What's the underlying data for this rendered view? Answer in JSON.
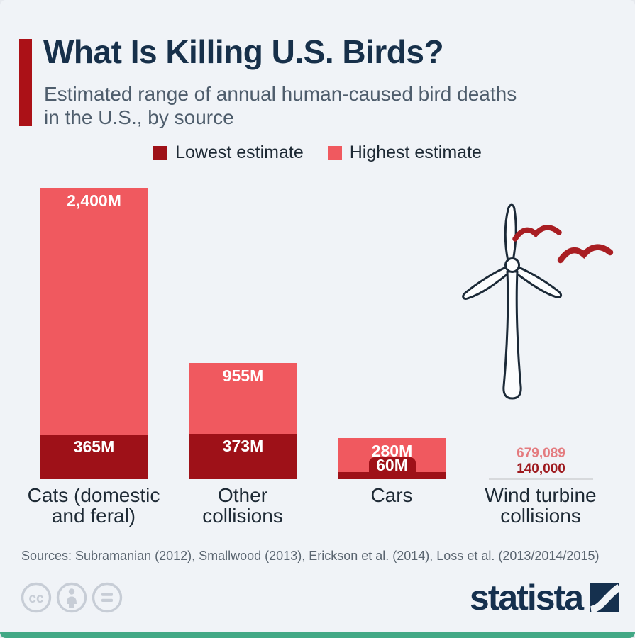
{
  "header": {
    "title": "What Is Killing U.S. Birds?",
    "subtitle_lines": [
      "Estimated range of annual human-caused bird deaths",
      "in the U.S., by source"
    ]
  },
  "legend": {
    "items": [
      {
        "label": "Lowest estimate",
        "color": "#9e1118"
      },
      {
        "label": "Highest estimate",
        "color": "#f0595f"
      }
    ]
  },
  "chart_data": {
    "type": "bar",
    "title": "What Is Killing U.S. Birds?",
    "subtitle": "Estimated range of annual human-caused bird deaths in the U.S., by source",
    "unit": "millions of bird deaths per year",
    "categories": [
      "Cats (domestic and feral)",
      "Other collisions",
      "Cars",
      "Wind turbine collisions"
    ],
    "series": [
      {
        "name": "Lowest estimate",
        "color": "#9e1118",
        "values": [
          365,
          373,
          60,
          0.14
        ],
        "labels": [
          "365M",
          "373M",
          "60M",
          "140,000"
        ]
      },
      {
        "name": "Highest estimate",
        "color": "#f0595f",
        "values": [
          2400,
          955,
          280,
          0.679089
        ],
        "labels": [
          "2,400M",
          "955M",
          "280M",
          "679,089"
        ]
      }
    ],
    "ylim": [
      0,
      2400
    ],
    "grid": false,
    "legend_position": "top"
  },
  "footer": {
    "sources": "Sources: Subramanian (2012), Smallwood (2013), Erickson et al. (2014), Loss et al. (2013/2014/2015)",
    "brand_name": "statista",
    "license_icons": [
      "cc-icon",
      "attribution-icon",
      "equals-icon"
    ]
  },
  "colors": {
    "background": "#f0f3f7",
    "accent_red": "#ab1117",
    "title_navy": "#17304a",
    "subtitle_gray": "#4e5d6c",
    "bar_low": "#9e1118",
    "bar_high": "#f0595f",
    "wind_value_high_text": "#e47b7f",
    "wind_value_low_text": "#9e1a1f",
    "turbine_outline": "#1c2a38",
    "bird_red": "#a91e23",
    "footer_green": "#42a885",
    "license_gray": "#c7cdd6",
    "brand_navy": "#15304e"
  }
}
